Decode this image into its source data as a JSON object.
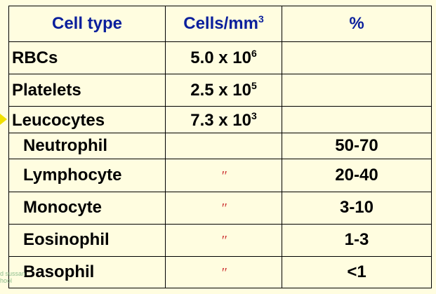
{
  "headers": [
    "Cell type",
    "Cells/mm",
    "%"
  ],
  "header_cells_sup": "3",
  "ditto_mark": "″",
  "rows": [
    {
      "type": "RBCs",
      "count": "5.0 x 10",
      "exp": "6",
      "percent": ""
    },
    {
      "type": "Platelets",
      "count": "2.5 x 10",
      "exp": "5",
      "percent": ""
    },
    {
      "type": "Leucocytes",
      "count": "7.3 x 10",
      "exp": "3",
      "percent": ""
    },
    {
      "type": "Neutrophil",
      "count": "",
      "exp": "",
      "percent": "50-70"
    },
    {
      "type": "Lymphocyte",
      "count": "″",
      "exp": "",
      "percent": "20-40"
    },
    {
      "type": "Monocyte",
      "count": "″",
      "exp": "",
      "percent": "3-10"
    },
    {
      "type": "Eosinophil",
      "count": "″",
      "exp": "",
      "percent": "1-3"
    },
    {
      "type": "Basophil",
      "count": "″",
      "exp": "",
      "percent": "<1"
    }
  ],
  "watermark": [
    "d sussan",
    "hool"
  ]
}
